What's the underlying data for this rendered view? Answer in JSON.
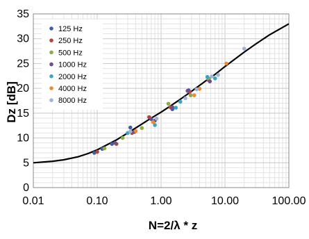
{
  "chart_data": {
    "type": "scatter",
    "title": "",
    "xlabel": "N=2/λ * z",
    "ylabel": "Dz [dB]",
    "xscale": "log",
    "xlim": [
      0.01,
      100
    ],
    "ylim": [
      0,
      35
    ],
    "grid": true,
    "legend_position": "top-left",
    "x_ticks": [
      "0.01",
      "0.10",
      "1.00",
      "10.00",
      "100.00"
    ],
    "y_ticks": [
      "0",
      "5",
      "10",
      "15",
      "20",
      "25",
      "30",
      "35"
    ],
    "series": [
      {
        "name": "125 Hz",
        "color": "#3b5fa8",
        "points": [
          [
            0.09,
            7.0
          ],
          [
            0.12,
            7.8
          ],
          [
            0.17,
            8.8
          ],
          [
            0.33,
            12.1
          ],
          [
            0.7,
            13.8
          ],
          [
            1.5,
            15.8
          ],
          [
            2.7,
            19.6
          ]
        ]
      },
      {
        "name": "250 Hz",
        "color": "#b04441",
        "points": [
          [
            0.1,
            7.2
          ],
          [
            0.2,
            8.8
          ],
          [
            0.35,
            11.0
          ],
          [
            0.65,
            14.2
          ],
          [
            1.4,
            16.2
          ],
          [
            2.8,
            19.3
          ],
          [
            5.5,
            21.7
          ]
        ]
      },
      {
        "name": "500 Hz",
        "color": "#8bac47",
        "points": [
          [
            0.13,
            7.9
          ],
          [
            0.25,
            10.0
          ],
          [
            0.5,
            12.0
          ],
          [
            1.3,
            16.9
          ],
          [
            2.9,
            18.6
          ],
          [
            5.6,
            21.9
          ]
        ]
      },
      {
        "name": "1000 Hz",
        "color": "#6f4d8f",
        "points": [
          [
            0.19,
            9.0
          ],
          [
            0.38,
            11.2
          ],
          [
            0.8,
            13.5
          ],
          [
            1.5,
            16.2
          ],
          [
            2.6,
            19.5
          ],
          [
            5.8,
            21.4
          ]
        ]
      },
      {
        "name": "2000 Hz",
        "color": "#3aa4c3",
        "points": [
          [
            0.3,
            11.0
          ],
          [
            0.8,
            12.6
          ],
          [
            1.7,
            16.1
          ],
          [
            2.0,
            17.3
          ],
          [
            5.3,
            22.3
          ],
          [
            7.0,
            22.0
          ]
        ]
      },
      {
        "name": "4000 Hz",
        "color": "#f08a2e",
        "points": [
          [
            0.4,
            11.4
          ],
          [
            0.75,
            13.2
          ],
          [
            3.3,
            18.6
          ],
          [
            4.0,
            19.9
          ],
          [
            10.5,
            25.0
          ]
        ]
      },
      {
        "name": "8000 Hz",
        "color": "#9fb3d9",
        "points": [
          [
            0.33,
            11.3
          ],
          [
            0.85,
            13.9
          ],
          [
            2.4,
            18.0
          ],
          [
            3.6,
            19.8
          ],
          [
            6.2,
            22.4
          ],
          [
            7.8,
            22.7
          ],
          [
            20.0,
            28.0
          ]
        ]
      }
    ],
    "curve": {
      "color": "#000000",
      "points": [
        [
          0.01,
          5.0
        ],
        [
          0.02,
          5.3
        ],
        [
          0.03,
          5.6
        ],
        [
          0.05,
          6.2
        ],
        [
          0.07,
          6.8
        ],
        [
          0.1,
          7.6
        ],
        [
          0.2,
          9.6
        ],
        [
          0.3,
          11.0
        ],
        [
          0.5,
          12.8
        ],
        [
          0.7,
          14.0
        ],
        [
          1.0,
          15.2
        ],
        [
          1.5,
          16.7
        ],
        [
          2.0,
          17.8
        ],
        [
          3.0,
          19.4
        ],
        [
          5.0,
          21.5
        ],
        [
          7.0,
          22.8
        ],
        [
          10.0,
          24.4
        ],
        [
          20.0,
          27.3
        ],
        [
          30.0,
          28.9
        ],
        [
          50.0,
          30.8
        ],
        [
          100.0,
          33.0
        ]
      ]
    }
  }
}
